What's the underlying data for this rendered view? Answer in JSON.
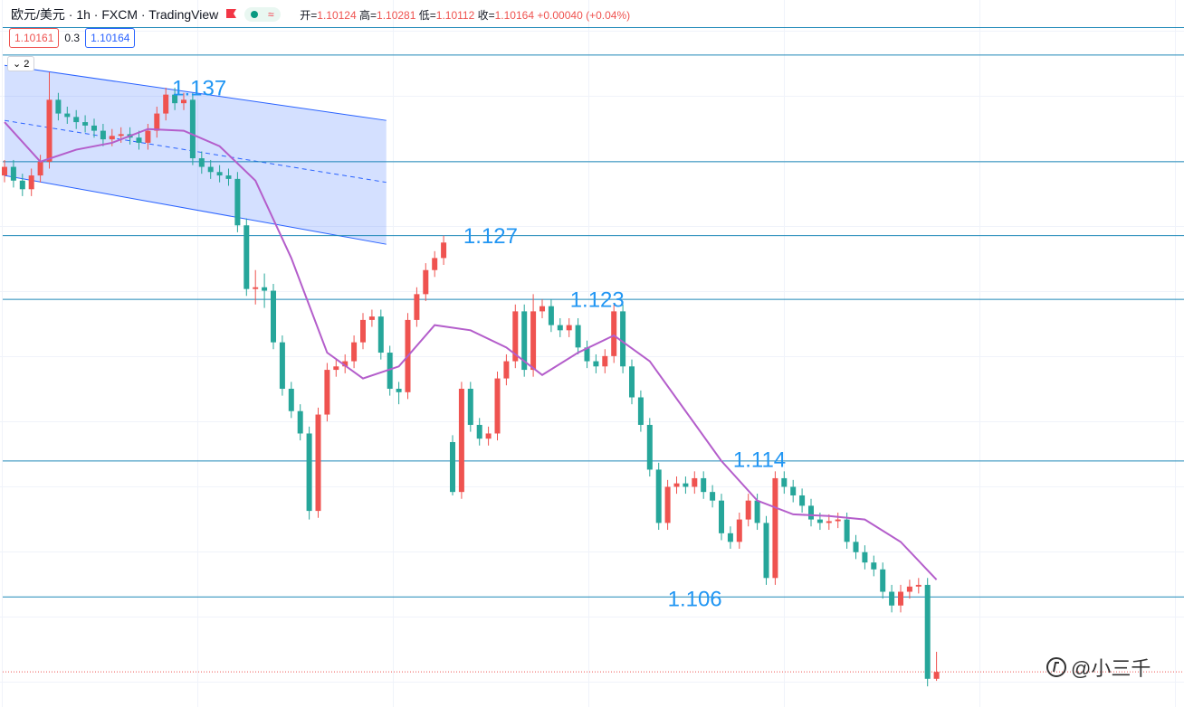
{
  "header": {
    "symbol": "欧元/美元 · 1h · FXCM · TradingView",
    "ohlc": [
      {
        "label": "开=",
        "value": "1.10124"
      },
      {
        "label": "高=",
        "value": "1.10281"
      },
      {
        "label": "低=",
        "value": "1.10112"
      },
      {
        "label": "收=",
        "value": "1.10164"
      }
    ],
    "change": "+0.00040 (+0.04%)",
    "bid": "1.10161",
    "spread": "0.3",
    "ask": "1.10164",
    "indicators": "2"
  },
  "watermark": "@小三千",
  "chart_data": {
    "type": "candlestick",
    "up_color": "#ef5350",
    "down_color": "#26a69a",
    "ylim": [
      1.0996,
      1.1407
    ],
    "open": [
      1.1305,
      1.131,
      1.1302,
      1.1297,
      1.1305,
      1.1313,
      1.1349,
      1.1341,
      1.1339,
      1.1336,
      1.1334,
      1.1331,
      1.1326,
      1.1328,
      1.1329,
      1.1327,
      1.1324,
      1.1331,
      1.1341,
      1.1352,
      1.1347,
      1.1349,
      1.1315,
      1.131,
      1.1307,
      1.1305,
      1.1303,
      1.1276,
      1.1239,
      1.124,
      1.1238,
      1.1208,
      1.1181,
      1.1168,
      1.1155,
      1.111,
      1.1166,
      1.1192,
      1.1194,
      1.1197,
      1.1208,
      1.1221,
      1.1223,
      1.1202,
      1.1181,
      1.1179,
      1.1221,
      1.1236,
      1.125,
      1.1257,
      1.115,
      1.1121,
      1.1181,
      1.116,
      1.1152,
      1.1155,
      1.1187,
      1.1197,
      1.1226,
      1.1192,
      1.1226,
      1.1229,
      1.1218,
      1.1215,
      1.1218,
      1.1205,
      1.1197,
      1.1194,
      1.12,
      1.1226,
      1.1194,
      1.1176,
      1.116,
      1.1134,
      1.1103,
      1.1124,
      1.1126,
      1.1124,
      1.1129,
      1.1121,
      1.1116,
      1.1097,
      1.1092,
      1.1105,
      1.1116,
      1.1103,
      1.1071,
      1.1129,
      1.1124,
      1.1119,
      1.1113,
      1.1105,
      1.1103,
      1.1104,
      1.1105,
      1.1092,
      1.1086,
      1.108,
      1.1076,
      1.1063,
      1.1055,
      1.1063,
      1.1066,
      1.1067,
      1.10124
    ],
    "high": [
      1.1314,
      1.1314,
      1.1306,
      1.1309,
      1.1317,
      1.1365,
      1.1353,
      1.1345,
      1.1343,
      1.134,
      1.1338,
      1.1335,
      1.1332,
      1.1333,
      1.1333,
      1.1331,
      1.1335,
      1.1345,
      1.1356,
      1.1356,
      1.1353,
      1.1353,
      1.1319,
      1.1314,
      1.1311,
      1.1309,
      1.1307,
      1.128,
      1.125,
      1.1248,
      1.1242,
      1.1212,
      1.1185,
      1.1172,
      1.1159,
      1.117,
      1.1196,
      1.1198,
      1.1201,
      1.1212,
      1.1225,
      1.1227,
      1.1227,
      1.1206,
      1.1185,
      1.1225,
      1.124,
      1.1254,
      1.1261,
      1.127,
      1.1154,
      1.1185,
      1.1185,
      1.1164,
      1.1159,
      1.1191,
      1.1201,
      1.123,
      1.123,
      1.1236,
      1.1233,
      1.1233,
      1.1222,
      1.1222,
      1.1222,
      1.1209,
      1.1201,
      1.1204,
      1.123,
      1.123,
      1.1198,
      1.118,
      1.1164,
      1.1138,
      1.1128,
      1.113,
      1.113,
      1.1133,
      1.1133,
      1.1125,
      1.112,
      1.1101,
      1.1109,
      1.112,
      1.112,
      1.1107,
      1.1133,
      1.1133,
      1.1128,
      1.1123,
      1.1117,
      1.1109,
      1.1108,
      1.1109,
      1.1109,
      1.1096,
      1.109,
      1.1084,
      1.108,
      1.1067,
      1.1067,
      1.107,
      1.1071,
      1.1071,
      1.10281
    ],
    "low": [
      1.1301,
      1.1298,
      1.1293,
      1.1293,
      1.1301,
      1.1309,
      1.1337,
      1.1335,
      1.1332,
      1.133,
      1.1327,
      1.1322,
      1.1322,
      1.1324,
      1.1323,
      1.132,
      1.132,
      1.1327,
      1.1337,
      1.1343,
      1.1343,
      1.1311,
      1.1306,
      1.1303,
      1.1301,
      1.1299,
      1.1272,
      1.1235,
      1.123,
      1.1228,
      1.1204,
      1.1177,
      1.1164,
      1.1151,
      1.1105,
      1.1106,
      1.1162,
      1.1188,
      1.119,
      1.1193,
      1.1204,
      1.1217,
      1.1198,
      1.1177,
      1.1172,
      1.1175,
      1.1217,
      1.1232,
      1.1246,
      1.1253,
      1.1119,
      1.1117,
      1.1156,
      1.1148,
      1.1148,
      1.1151,
      1.1183,
      1.1193,
      1.1188,
      1.1188,
      1.1222,
      1.1214,
      1.1211,
      1.1211,
      1.1201,
      1.1193,
      1.119,
      1.119,
      1.1196,
      1.119,
      1.1172,
      1.1156,
      1.113,
      1.1099,
      1.1099,
      1.112,
      1.112,
      1.112,
      1.1117,
      1.1112,
      1.1093,
      1.1088,
      1.1088,
      1.1101,
      1.1099,
      1.1067,
      1.1067,
      1.112,
      1.1115,
      1.1109,
      1.1101,
      1.1099,
      1.1099,
      1.11,
      1.1088,
      1.1082,
      1.1076,
      1.1072,
      1.1059,
      1.1051,
      1.1051,
      1.1059,
      1.1062,
      1.1008,
      1.10112
    ],
    "close": [
      1.131,
      1.1302,
      1.1297,
      1.1305,
      1.1313,
      1.1349,
      1.1341,
      1.1339,
      1.1336,
      1.1334,
      1.1331,
      1.1326,
      1.1328,
      1.1329,
      1.1327,
      1.1324,
      1.1331,
      1.1341,
      1.1352,
      1.1347,
      1.1349,
      1.1315,
      1.131,
      1.1307,
      1.1305,
      1.1303,
      1.1276,
      1.1239,
      1.124,
      1.1238,
      1.1208,
      1.1181,
      1.1168,
      1.1155,
      1.111,
      1.1166,
      1.1192,
      1.1194,
      1.1197,
      1.1208,
      1.1221,
      1.1223,
      1.1202,
      1.1181,
      1.1179,
      1.1221,
      1.1236,
      1.125,
      1.1257,
      1.1266,
      1.1121,
      1.1181,
      1.116,
      1.1152,
      1.1155,
      1.1187,
      1.1197,
      1.1226,
      1.1192,
      1.1226,
      1.1229,
      1.1218,
      1.1215,
      1.1218,
      1.1205,
      1.1197,
      1.1194,
      1.12,
      1.1226,
      1.1194,
      1.1176,
      1.116,
      1.1134,
      1.1103,
      1.1124,
      1.1126,
      1.1124,
      1.1129,
      1.1121,
      1.1116,
      1.1097,
      1.1092,
      1.1105,
      1.1116,
      1.1103,
      1.1071,
      1.1129,
      1.1124,
      1.1119,
      1.1113,
      1.1105,
      1.1103,
      1.1104,
      1.1105,
      1.1092,
      1.1086,
      1.108,
      1.1076,
      1.1063,
      1.1055,
      1.1063,
      1.1066,
      1.1067,
      1.10124,
      1.10164
    ],
    "ma": {
      "color": "#b45ecb",
      "x": [
        0,
        4,
        8,
        12,
        16,
        20,
        24,
        28,
        32,
        36,
        40,
        44,
        48,
        52,
        56,
        60,
        64,
        68,
        72,
        76,
        80,
        84,
        88,
        92,
        96,
        100,
        104
      ],
      "values": [
        1.1336,
        1.1313,
        1.132,
        1.1324,
        1.1332,
        1.1331,
        1.1322,
        1.1302,
        1.1257,
        1.1202,
        1.1187,
        1.1194,
        1.1218,
        1.1215,
        1.1205,
        1.1189,
        1.1202,
        1.1212,
        1.1197,
        1.1168,
        1.1139,
        1.1116,
        1.1108,
        1.1107,
        1.1105,
        1.1092,
        1.107
      ]
    },
    "channel": {
      "color": "#2962ff",
      "x": [
        0,
        42.6
      ],
      "upper": [
        1.1369,
        1.1337
      ],
      "lower": [
        1.1305,
        1.1265
      ]
    },
    "level_color": "#1e88b8",
    "levels": [
      1.1391,
      1.1375,
      1.1313,
      1.127,
      1.1233,
      1.1139,
      1.106
    ],
    "annotation_color": "#2196f3",
    "annotations": [
      {
        "text": "1.137",
        "x": 18.7,
        "y": 1.1355
      },
      {
        "text": "1.127",
        "x": 51.2,
        "y": 1.1269
      },
      {
        "text": "1.123",
        "x": 63.1,
        "y": 1.1232
      },
      {
        "text": "1.114",
        "x": 81.3,
        "y": 1.1139
      },
      {
        "text": "1.106",
        "x": 74.0,
        "y": 1.1058
      }
    ]
  }
}
